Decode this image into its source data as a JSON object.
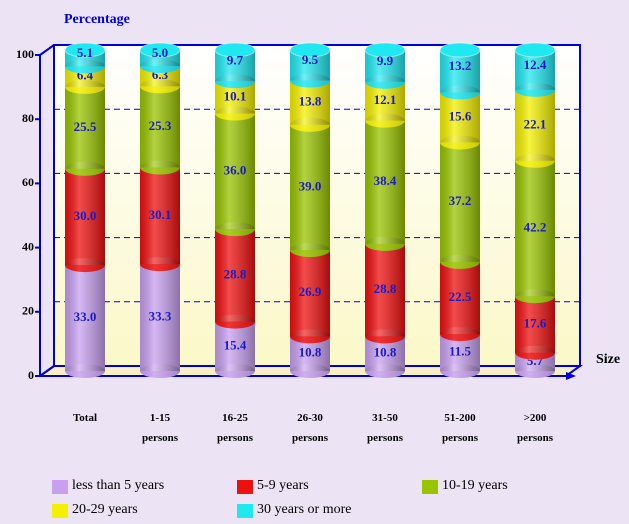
{
  "chart_data": {
    "type": "stacked_bar_3d",
    "y_axis_label": "Percentage",
    "x_axis_label": "Size",
    "categories": [
      "Total",
      "1-15 persons",
      "16-25 persons",
      "26-30 persons",
      "31-50 persons",
      "51-200 persons",
      ">200 persons"
    ],
    "series": [
      {
        "name": "less than 5 years",
        "color": "#c8a0f0",
        "values": [
          33.0,
          33.3,
          15.4,
          10.8,
          10.8,
          11.5,
          5.7
        ],
        "value_labels": [
          "33.0",
          "33.3",
          "15.4",
          "10.8",
          "10.8",
          "11.5",
          "5.7"
        ]
      },
      {
        "name": "5-9 years",
        "color": "#ee1010",
        "values": [
          30.0,
          30.1,
          28.8,
          26.9,
          28.8,
          22.5,
          17.6
        ],
        "value_labels": [
          "30.0",
          "30.1",
          "28.8",
          "26.9",
          "28.8",
          "22.5",
          "17.6"
        ]
      },
      {
        "name": "10-19 years",
        "color": "#99c400",
        "values": [
          25.5,
          25.3,
          36.0,
          39.0,
          38.4,
          37.2,
          42.2
        ],
        "value_labels": [
          "25.5",
          "25.3",
          "36.0",
          "39.0",
          "38.4",
          "37.2",
          "42.2"
        ]
      },
      {
        "name": "20-29 years",
        "color": "#f4f000",
        "values": [
          6.4,
          6.3,
          10.1,
          13.8,
          12.1,
          15.6,
          22.1
        ],
        "value_labels": [
          "6.4",
          "6.3",
          "10.1",
          "13.8",
          "12.1",
          "15.6",
          "22.1"
        ]
      },
      {
        "name": "30 years or more",
        "color": "#20e8f0",
        "values": [
          5.1,
          5.0,
          9.7,
          9.5,
          9.9,
          13.2,
          12.4
        ],
        "value_labels": [
          "5.1",
          "5.0",
          "9.7",
          "9.5",
          "9.9",
          "13.2",
          "12.4"
        ]
      }
    ],
    "ylim": [
      0,
      100
    ],
    "yticks": [
      0,
      20,
      40,
      60,
      80,
      100
    ],
    "grid": true
  }
}
